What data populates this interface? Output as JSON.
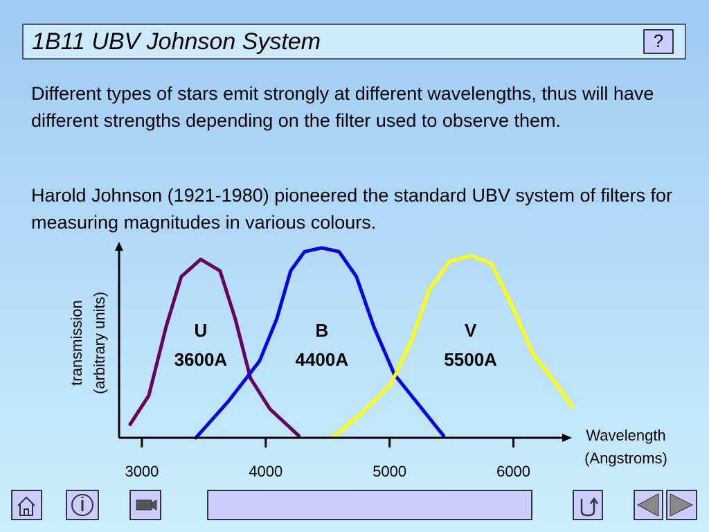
{
  "header": {
    "title": "1B11 UBV Johnson System",
    "help": "?"
  },
  "paragraphs": [
    "Different types of stars emit strongly at different wavelengths, thus will have different strengths depending on the filter used to observe them.",
    "Harold Johnson (1921-1980) pioneered the standard UBV system of filters for measuring magnitudes in various colours."
  ],
  "chart_data": {
    "type": "line",
    "xlabel": [
      "Wavelength",
      "(Angstroms)"
    ],
    "ylabel": [
      "transmission",
      "(arbitrary units)"
    ],
    "xlim": [
      2816,
      6500
    ],
    "ylim": [
      0,
      1
    ],
    "xticks": [
      3000,
      4000,
      5000,
      6000
    ],
    "series": [
      {
        "name": "U",
        "annotation": "3600A",
        "color": "#660066",
        "x": [
          2905,
          3056,
          3196,
          3318,
          3475,
          3631,
          3754,
          3877,
          4034,
          4268
        ],
        "values": [
          0.07,
          0.22,
          0.58,
          0.84,
          0.93,
          0.87,
          0.62,
          0.31,
          0.15,
          0.01
        ]
      },
      {
        "name": "B",
        "annotation": "4400A",
        "color": "#0000ee",
        "x": [
          3436,
          3698,
          3950,
          4089,
          4201,
          4313,
          4453,
          4592,
          4732,
          4872,
          5039,
          5263,
          5436
        ],
        "values": [
          0,
          0.19,
          0.4,
          0.62,
          0.87,
          0.97,
          0.99,
          0.97,
          0.84,
          0.58,
          0.33,
          0.15,
          0.01
        ]
      },
      {
        "name": "V",
        "annotation": "5500A",
        "color": "#ffff00",
        "x": [
          4536,
          4760,
          5011,
          5179,
          5318,
          5486,
          5654,
          5821,
          5989,
          6156,
          6324,
          6480
        ],
        "values": [
          0,
          0.12,
          0.28,
          0.51,
          0.77,
          0.92,
          0.95,
          0.91,
          0.69,
          0.44,
          0.3,
          0.16
        ]
      }
    ]
  }
}
